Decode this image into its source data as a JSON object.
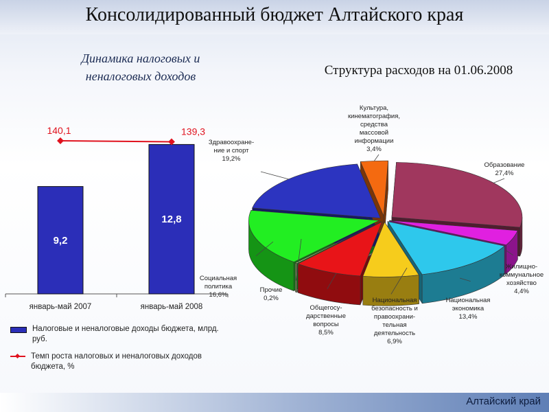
{
  "header": {
    "title": "Консолидированный бюджет Алтайского края"
  },
  "left_panel": {
    "title": "Динамика налоговых и неналоговых доходов"
  },
  "right_panel": {
    "title": "Структура расходов на 01.06.2008"
  },
  "legend": {
    "bar": "Налоговые и неналоговые доходы бюджета, млрд. руб.",
    "line": "Темп роста налоговых и неналоговых доходов бюджета, %"
  },
  "colors": {
    "bar": "#2b2eb8",
    "line": "#e0121e"
  },
  "chart_data": [
    {
      "type": "bar",
      "categories": [
        "январь-май 2007",
        "январь-май 2008"
      ],
      "series": [
        {
          "name": "Налоговые и неналоговые доходы бюджета, млрд. руб.",
          "values": [
            9.2,
            12.8
          ],
          "data_labels": [
            "9,2",
            "12,8"
          ]
        },
        {
          "name": "Темп роста налоговых и неналоговых доходов бюджета, %",
          "values": [
            140.1,
            139.3
          ],
          "data_labels": [
            "140,1",
            "139,3"
          ],
          "kind": "line"
        }
      ],
      "ylim": [
        0,
        14
      ],
      "grid": false
    },
    {
      "type": "pie",
      "title": "Структура расходов на 01.06.2008",
      "slices": [
        {
          "label": "Образование",
          "value": 27.4,
          "display": "27,4%",
          "color": "#a0375e"
        },
        {
          "label": "Жилищно-коммунальное хозяйство",
          "value": 4.4,
          "display": "4,4%",
          "color": "#e020e0"
        },
        {
          "label": "Национальная экономика",
          "value": 13.4,
          "display": "13,4%",
          "color": "#2ec8ec"
        },
        {
          "label": "Национальная безопасность и правоохранительная деятельность",
          "value": 6.9,
          "display": "6,9%",
          "color": "#f6cc1c"
        },
        {
          "label": "Общегосударственные вопросы",
          "value": 8.5,
          "display": "8,5%",
          "color": "#e81418"
        },
        {
          "label": "Прочие",
          "value": 0.2,
          "display": "0,2%",
          "color": "#d8e8a0"
        },
        {
          "label": "Социальная политика",
          "value": 16.6,
          "display": "16,6%",
          "color": "#22ee22"
        },
        {
          "label": "Здравоохранение и спорт",
          "value": 19.2,
          "display": "19,2%",
          "color": "#2c34c0"
        },
        {
          "label": "Культура, кинематография, средства массовой информации",
          "value": 3.4,
          "display": "3,4%",
          "color": "#f46a10"
        }
      ],
      "label_lines": {
        "Образование": [
          "Образование",
          "27,4%"
        ],
        "Жилищно-коммунальное хозяйство": [
          "Жилищно-",
          "коммунальное",
          "хозяйство",
          "4,4%"
        ],
        "Национальная экономика": [
          "Национальная",
          "экономика",
          "13,4%"
        ],
        "Национальная безопасность и правоохранительная деятельность": [
          "Национальная",
          "безопасность и",
          "правоохрани-",
          "тельная",
          "деятельность",
          "6,9%"
        ],
        "Общегосударственные вопросы": [
          "Общегосу-",
          "дарственные",
          "вопросы",
          "8,5%"
        ],
        "Прочие": [
          "Прочие",
          "0,2%"
        ],
        "Социальная политика": [
          "Социальная",
          "политика",
          "16,6%"
        ],
        "Здравоохранение и спорт": [
          "Здравоохране-",
          "ние и спорт",
          "19,2%"
        ],
        "Культура, кинематография, средства массовой информации": [
          "Культура,",
          "кинематография,",
          "средства",
          "массовой",
          "информации",
          "3,4%"
        ]
      }
    }
  ],
  "footer": {
    "brand": "Алтайский край"
  }
}
